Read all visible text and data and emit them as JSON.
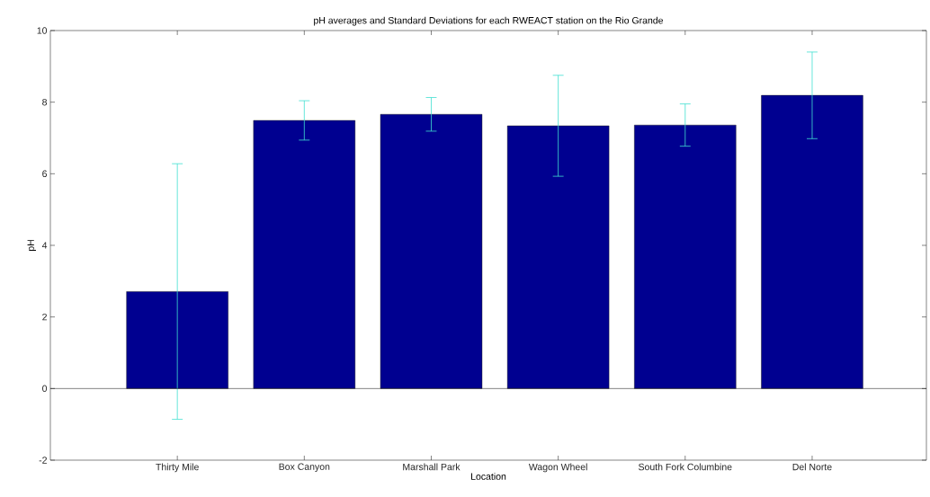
{
  "chart_data": {
    "type": "bar",
    "title": "pH averages and Standard Deviations for each RWEACT station on the Rio Grande",
    "xlabel": "Location",
    "ylabel": "pH",
    "categories": [
      "Thirty Mile",
      "Box Canyon",
      "Marshall Park",
      "Wagon Wheel",
      "South Fork Columbine",
      "Del Norte"
    ],
    "values": [
      2.71,
      7.49,
      7.66,
      7.34,
      7.36,
      8.19
    ],
    "errors": [
      3.57,
      0.55,
      0.47,
      1.41,
      0.59,
      1.21
    ],
    "color": "#000090",
    "ylim": [
      -2,
      10
    ],
    "yticks": [
      -2,
      0,
      2,
      4,
      6,
      8,
      10
    ]
  }
}
